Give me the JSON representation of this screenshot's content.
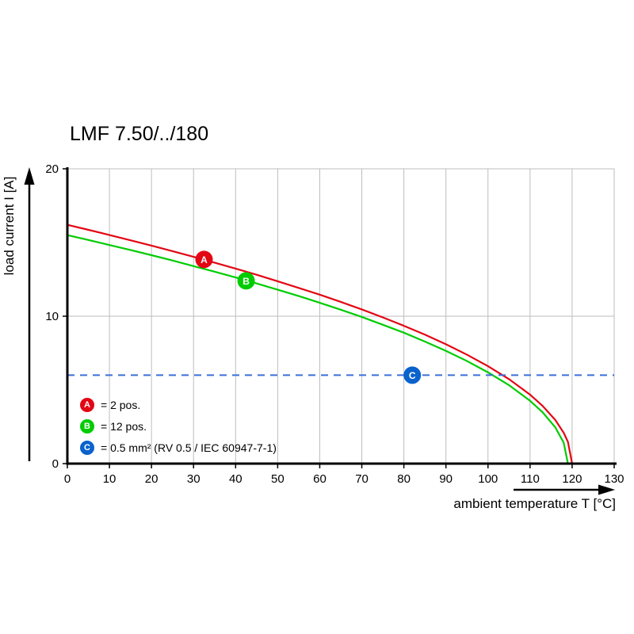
{
  "title": "LMF 7.50/../180",
  "legend": [
    {
      "letter": "A",
      "color": "#e30613",
      "label": "= 2 pos."
    },
    {
      "letter": "B",
      "color": "#00cc00",
      "label": "= 12 pos."
    },
    {
      "letter": "C",
      "color": "#0a62cc",
      "label": "= 0.5 mm² (RV 0.5 / IEC 60947-7-1)"
    }
  ],
  "chart_data": {
    "type": "line",
    "title": "LMF 7.50/../180",
    "xlabel": "ambient temperature T [°C]",
    "ylabel": "load current I [A]",
    "xlim": [
      0,
      130
    ],
    "ylim": [
      0,
      20
    ],
    "x_ticks": [
      0,
      10,
      20,
      30,
      40,
      50,
      60,
      70,
      80,
      90,
      100,
      110,
      120,
      130
    ],
    "y_ticks": [
      0,
      10,
      20
    ],
    "grid": true,
    "legend_position": "bottom-left-inside",
    "series": [
      {
        "key": "A",
        "name": "A = 2 pos.",
        "color": "#e30613",
        "style": "solid",
        "x": [
          0,
          5,
          10,
          15,
          20,
          25,
          30,
          35,
          40,
          45,
          50,
          55,
          60,
          65,
          70,
          75,
          80,
          85,
          90,
          95,
          100,
          105,
          110,
          113,
          116,
          118,
          119,
          120
        ],
        "y": [
          16.2,
          15.86,
          15.51,
          15.15,
          14.79,
          14.41,
          14.03,
          13.63,
          13.23,
          12.81,
          12.37,
          11.92,
          11.46,
          10.97,
          10.46,
          9.92,
          9.35,
          8.75,
          8.1,
          7.39,
          6.61,
          5.73,
          4.68,
          3.91,
          2.96,
          2.09,
          1.48,
          0
        ]
      },
      {
        "key": "B",
        "name": "B = 12 pos.",
        "color": "#00cc00",
        "style": "solid",
        "x": [
          0,
          5,
          10,
          15,
          20,
          25,
          30,
          35,
          40,
          45,
          50,
          55,
          60,
          65,
          70,
          75,
          80,
          85,
          90,
          95,
          100,
          105,
          110,
          113,
          116,
          118,
          119
        ],
        "y": [
          15.5,
          15.17,
          14.83,
          14.49,
          14.14,
          13.78,
          13.4,
          13.02,
          12.63,
          12.22,
          11.8,
          11.37,
          10.91,
          10.44,
          9.95,
          9.42,
          8.88,
          8.28,
          7.65,
          6.96,
          6.19,
          5.32,
          4.26,
          3.48,
          2.46,
          1.42,
          0
        ]
      },
      {
        "key": "C",
        "name": "C = 0.5 mm² (RV 0.5 / IEC 60947-7-1)",
        "color": "#3a6fd8",
        "style": "dashed",
        "x": [
          0,
          130
        ],
        "y": [
          6,
          6
        ]
      }
    ],
    "markers": [
      {
        "letter": "A",
        "x": 32.5,
        "y": 13.85,
        "color": "#e30613"
      },
      {
        "letter": "B",
        "x": 42.5,
        "y": 12.4,
        "color": "#00cc00"
      },
      {
        "letter": "C",
        "x": 82,
        "y": 6,
        "color": "#0a62cc"
      }
    ]
  }
}
